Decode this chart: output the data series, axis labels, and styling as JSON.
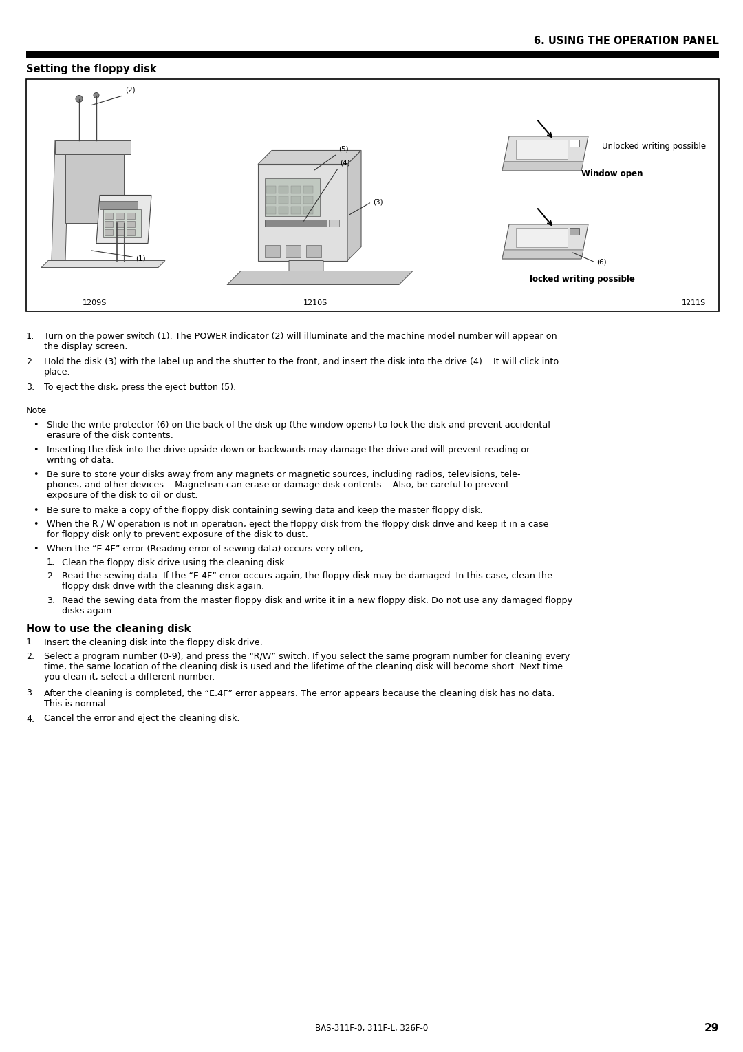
{
  "page_background": "#ffffff",
  "header_text": "6. USING THE OPERATION PANEL",
  "section1_title": "Setting the floppy disk",
  "diagram_labels_bottom": [
    "1209S",
    "1210S",
    "1211S"
  ],
  "steps": [
    [
      "1.",
      "Turn on the power switch (1). The POWER indicator (2) will illuminate and the machine model number will appear on\nthe display screen."
    ],
    [
      "2.",
      "Hold the disk (3) with the label up and the shutter to the front, and insert the disk into the drive (4).   It will click into\nplace."
    ],
    [
      "3.",
      "To eject the disk, press the eject button (5)."
    ]
  ],
  "note_title": "Note",
  "note_bullets": [
    "Slide the write protector (6) on the back of the disk up (the window opens) to lock the disk and prevent accidental\nerasure of the disk contents.",
    "Inserting the disk into the drive upside down or backwards may damage the drive and will prevent reading or\nwriting of data.",
    "Be sure to store your disks away from any magnets or magnetic sources, including radios, televisions, tele-\nphones, and other devices.   Magnetism can erase or damage disk contents.   Also, be careful to prevent\nexposure of the disk to oil or dust.",
    "Be sure to make a copy of the floppy disk containing sewing data and keep the master floppy disk.",
    "When the R / W operation is not in operation, eject the floppy disk from the floppy disk drive and keep it in a case\nfor floppy disk only to prevent exposure of the disk to dust.",
    "When the “E.4F” error (Reading error of sewing data) occurs very often;"
  ],
  "note_numbered": [
    [
      "1.",
      "Clean the floppy disk drive using the cleaning disk."
    ],
    [
      "2.",
      "Read the sewing data. If the “E.4F” error occurs again, the floppy disk may be damaged. In this case, clean the\nfloppy disk drive with the cleaning disk again."
    ],
    [
      "3.",
      "Read the sewing data from the master floppy disk and write it in a new floppy disk. Do not use any damaged floppy\ndisks again."
    ]
  ],
  "section2_title": "How to use the cleaning disk",
  "section2_steps": [
    [
      "1.",
      "Insert the cleaning disk into the floppy disk drive."
    ],
    [
      "2.",
      "Select a program number (0-9), and press the “R/W” switch. If you select the same program number for cleaning every\ntime, the same location of the cleaning disk is used and the lifetime of the cleaning disk will become short. Next time\nyou clean it, select a different number."
    ],
    [
      "3.",
      "After the cleaning is completed, the “E.4F” error appears. The error appears because the cleaning disk has no data.\nThis is normal."
    ],
    [
      "4.",
      "Cancel the error and eject the cleaning disk."
    ]
  ],
  "footer_text": "BAS-311F-0, 311F-L, 326F-0",
  "page_number": "29",
  "text_color": "#000000",
  "body_font_size": 9.2,
  "header_font_size": 10.5,
  "section_title_font_size": 10.5
}
